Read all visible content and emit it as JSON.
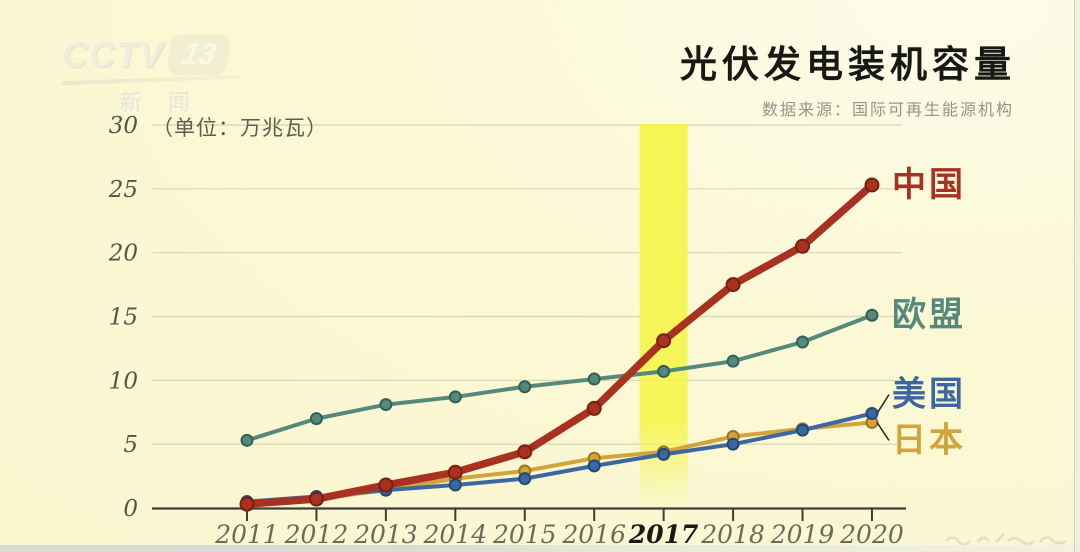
{
  "page": {
    "background": "#fbf8d4"
  },
  "branding": {
    "logo_text": "CCTV",
    "logo_channel": "13",
    "logo_subtext": "新闻"
  },
  "header": {
    "title": "光伏发电装机容量",
    "source": "数据来源：国际可再生能源机构"
  },
  "chart_data": {
    "type": "line",
    "title": "光伏发电装机容量",
    "subtitle": "数据来源：国际可再生能源机构",
    "unit_label": "（单位：万兆瓦）",
    "xlabel": "",
    "ylabel": "万兆瓦",
    "x": [
      "2011",
      "2012",
      "2013",
      "2014",
      "2015",
      "2016",
      "2017",
      "2018",
      "2019",
      "2020"
    ],
    "yticks": [
      0,
      5,
      10,
      15,
      20,
      25,
      30
    ],
    "ylim": [
      0,
      30
    ],
    "grid": true,
    "legend_position": "right-of-line-ends",
    "highlight_band": {
      "x": "2017",
      "color": "#f5f546"
    },
    "axis_colors": {
      "tick_label": "#6b6b5c",
      "emphasized_tick_label": "#1a1a1a",
      "y_label": "#55554b",
      "axis_line": "#3f3f37",
      "gridline": "rgba(125,125,95,0.28)"
    },
    "series": [
      {
        "name": "中国",
        "color": "#a93120",
        "marker_stroke": "#77200f",
        "line_width": 7.5,
        "values": [
          0.3,
          0.7,
          1.8,
          2.8,
          4.4,
          7.8,
          13.1,
          17.5,
          20.5,
          25.3
        ]
      },
      {
        "name": "欧盟",
        "color": "#55897b",
        "marker_stroke": "#335f54",
        "line_width": 4,
        "values": [
          5.3,
          7.0,
          8.1,
          8.7,
          9.5,
          10.1,
          10.7,
          11.5,
          13.0,
          15.1
        ]
      },
      {
        "name": "美国",
        "color": "#3a689f",
        "marker_stroke": "#24477a",
        "line_width": 4,
        "values": [
          0.5,
          0.9,
          1.4,
          1.8,
          2.3,
          3.3,
          4.2,
          5.0,
          6.1,
          7.4
        ]
      },
      {
        "name": "日本",
        "color": "#d4a43c",
        "marker_stroke": "#9c7420",
        "line_width": 4,
        "values": [
          0.5,
          0.7,
          1.4,
          2.3,
          2.9,
          3.9,
          4.4,
          5.6,
          6.2,
          6.7
        ]
      }
    ]
  }
}
